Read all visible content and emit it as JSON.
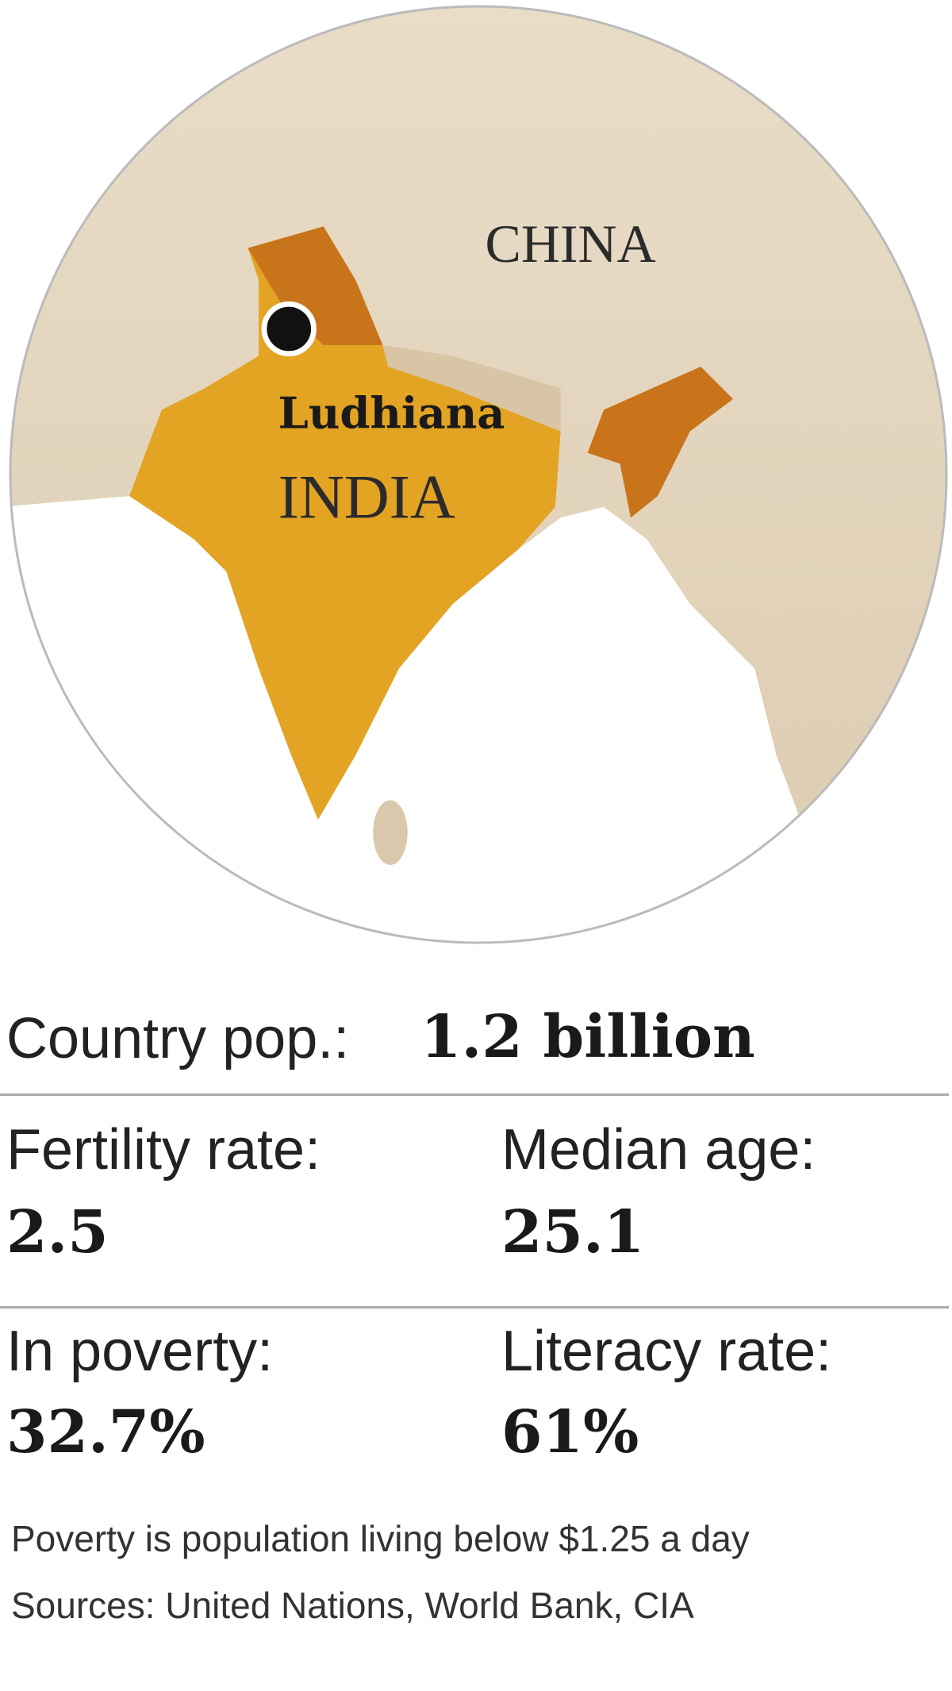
{
  "map": {
    "labels": {
      "region": "CHINA",
      "city": "Ludhiana",
      "country": "INDIA"
    }
  },
  "stats": {
    "population": {
      "label": "Country pop.:",
      "value": "1.2 billion"
    },
    "fertility": {
      "label": "Fertility rate:",
      "value": "2.5"
    },
    "median_age": {
      "label": "Median age:",
      "value": "25.1"
    },
    "poverty": {
      "label": "In poverty:",
      "value": "32.7%"
    },
    "literacy": {
      "label": "Literacy rate:",
      "value": "61%"
    }
  },
  "notes": [
    "Poverty is population living below $1.25 a day",
    "Sources: United Nations, World Bank, CIA"
  ]
}
